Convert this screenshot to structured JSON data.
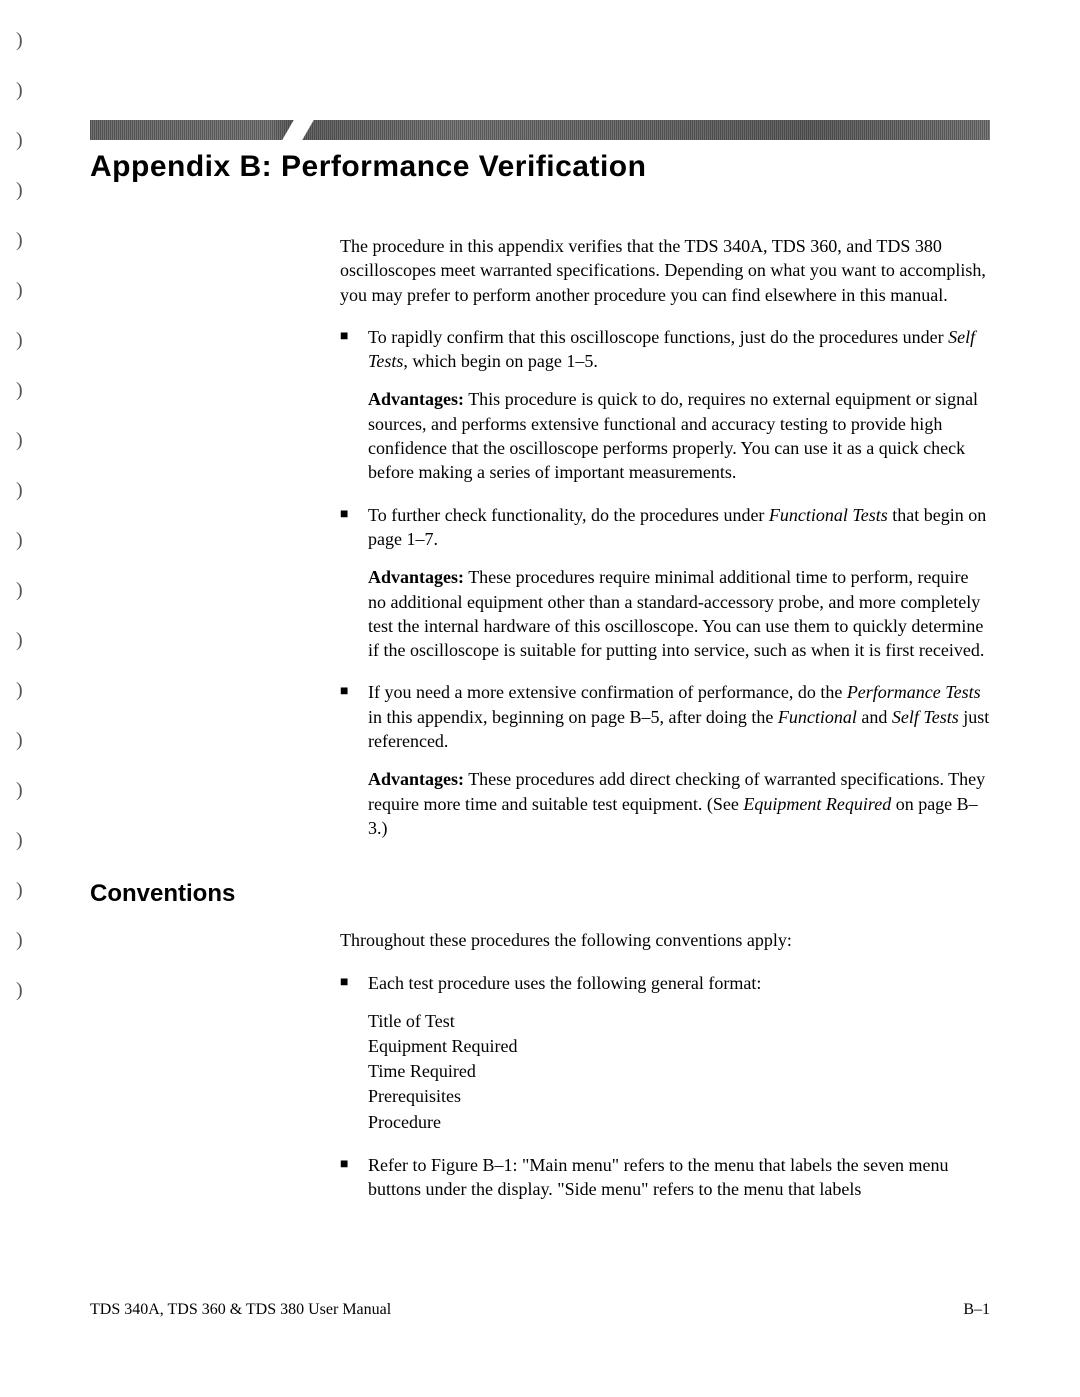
{
  "title": "Appendix B: Performance Verification",
  "intro": "The procedure in this appendix verifies that the TDS 340A, TDS 360, and TDS 380 oscilloscopes meet warranted specifications. Depending on what you want to accomplish, you may prefer to perform another procedure you can find elsewhere in this manual.",
  "bullets": {
    "b1": {
      "lead": "To rapidly confirm that this oscilloscope functions, just do the procedures under ",
      "italic1": "Self Tests",
      "tail": ", which begin on page 1–5.",
      "adv_label": "Advantages:",
      "adv_text": " This procedure is quick to do, requires no external equipment or signal sources, and performs extensive functional and accuracy testing to provide high confidence that the oscilloscope performs properly. You can use it as a quick check before making a series of important measurements."
    },
    "b2": {
      "lead": "To further check functionality, do the procedures under ",
      "italic1": "Functional Tests",
      "tail": " that begin on page 1–7.",
      "adv_label": "Advantages:",
      "adv_text": " These procedures require minimal additional time to perform, require no additional equipment other than a standard-accessory probe, and more completely test the internal hardware of this oscilloscope. You can use them to quickly determine if the oscilloscope is suitable for putting into service, such as when it is first received."
    },
    "b3": {
      "lead": "If you need a more extensive confirmation of performance, do the ",
      "italic1": "Performance Tests",
      "mid1": " in this appendix, beginning on page B–5, after doing the ",
      "italic2": "Functional",
      "mid2": " and ",
      "italic3": "Self Tests",
      "tail": " just referenced.",
      "adv_label": "Advantages:",
      "adv_text1": " These procedures add direct checking of warranted specifications. They require more time and suitable test equipment. (See ",
      "adv_italic": "Equipment Required",
      "adv_text2": " on page B–3.)"
    }
  },
  "conventions": {
    "heading": "Conventions",
    "intro": "Throughout these procedures the following conventions apply:",
    "c1": "Each test procedure uses the following general format:",
    "format_items": {
      "f1": "Title of Test",
      "f2": "Equipment Required",
      "f3": "Time Required",
      "f4": "Prerequisites",
      "f5": "Procedure"
    },
    "c2": "Refer to Figure B–1: \"Main menu\" refers to the menu that labels the seven menu buttons under the display. \"Side menu\" refers to the menu that labels"
  },
  "footer": {
    "left": "TDS 340A, TDS 360 & TDS 380 User Manual",
    "right": "B–1"
  }
}
